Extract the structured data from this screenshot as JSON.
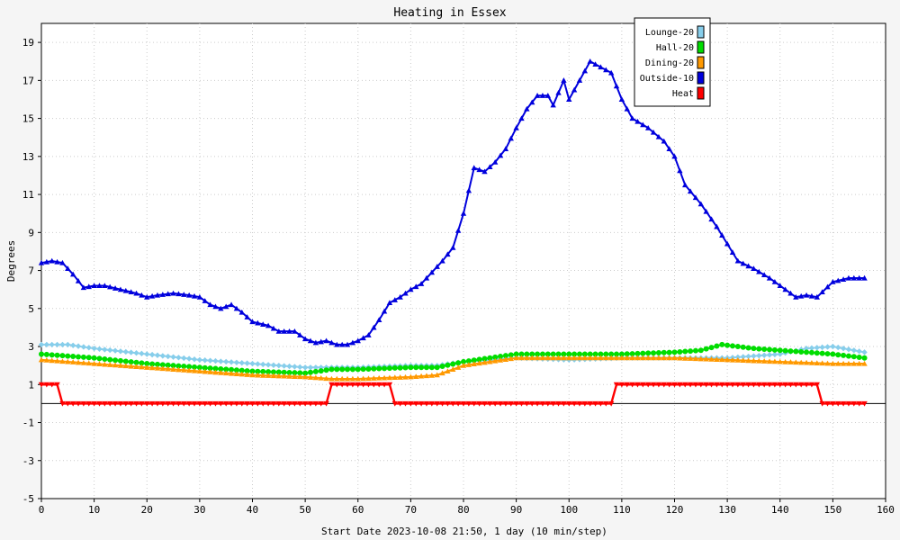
{
  "chart_data": {
    "type": "line",
    "title": "Heating in Essex",
    "xlabel": "Start Date 2023-10-08 21:50, 1 day (10 min/step)",
    "ylabel": "Degrees",
    "xlim": [
      0,
      160
    ],
    "ylim": [
      -5,
      20
    ],
    "xticks": [
      0,
      10,
      20,
      30,
      40,
      50,
      60,
      70,
      80,
      90,
      100,
      110,
      120,
      130,
      140,
      150,
      160
    ],
    "yticks": [
      -5,
      -3,
      -1,
      1,
      3,
      5,
      7,
      9,
      11,
      13,
      15,
      17,
      19
    ],
    "grid": true,
    "legend_position": "top-right",
    "x_step": 1,
    "series": [
      {
        "name": "Lounge-20",
        "color": "#87ceeb",
        "marker": "diamond",
        "keypoints": [
          [
            0,
            3.1
          ],
          [
            5,
            3.1
          ],
          [
            10,
            2.9
          ],
          [
            20,
            2.6
          ],
          [
            30,
            2.3
          ],
          [
            40,
            2.1
          ],
          [
            50,
            1.9
          ],
          [
            60,
            1.9
          ],
          [
            70,
            2.0
          ],
          [
            75,
            2.0
          ],
          [
            80,
            2.2
          ],
          [
            90,
            2.4
          ],
          [
            100,
            2.3
          ],
          [
            110,
            2.4
          ],
          [
            120,
            2.4
          ],
          [
            130,
            2.4
          ],
          [
            140,
            2.6
          ],
          [
            145,
            2.9
          ],
          [
            150,
            3.0
          ],
          [
            156,
            2.7
          ]
        ]
      },
      {
        "name": "Hall-20",
        "color": "#00dd00",
        "marker": "circle",
        "keypoints": [
          [
            0,
            2.6
          ],
          [
            10,
            2.4
          ],
          [
            20,
            2.1
          ],
          [
            30,
            1.9
          ],
          [
            40,
            1.7
          ],
          [
            50,
            1.6
          ],
          [
            55,
            1.8
          ],
          [
            60,
            1.8
          ],
          [
            70,
            1.9
          ],
          [
            75,
            1.9
          ],
          [
            80,
            2.2
          ],
          [
            85,
            2.4
          ],
          [
            90,
            2.6
          ],
          [
            100,
            2.6
          ],
          [
            110,
            2.6
          ],
          [
            120,
            2.7
          ],
          [
            125,
            2.8
          ],
          [
            129,
            3.1
          ],
          [
            135,
            2.9
          ],
          [
            140,
            2.8
          ],
          [
            150,
            2.6
          ],
          [
            156,
            2.4
          ]
        ]
      },
      {
        "name": "Dining-20",
        "color": "#ff9900",
        "marker": "triangle",
        "keypoints": [
          [
            0,
            2.3
          ],
          [
            10,
            2.1
          ],
          [
            20,
            1.9
          ],
          [
            30,
            1.7
          ],
          [
            40,
            1.5
          ],
          [
            50,
            1.4
          ],
          [
            55,
            1.3
          ],
          [
            60,
            1.3
          ],
          [
            70,
            1.4
          ],
          [
            75,
            1.5
          ],
          [
            80,
            2.0
          ],
          [
            85,
            2.2
          ],
          [
            90,
            2.4
          ],
          [
            100,
            2.4
          ],
          [
            110,
            2.4
          ],
          [
            120,
            2.4
          ],
          [
            130,
            2.3
          ],
          [
            140,
            2.2
          ],
          [
            150,
            2.1
          ],
          [
            156,
            2.1
          ]
        ]
      },
      {
        "name": "Outside-10",
        "color": "#0000dd",
        "marker": "triangle",
        "keypoints": [
          [
            0,
            7.4
          ],
          [
            2,
            7.5
          ],
          [
            4,
            7.4
          ],
          [
            6,
            6.8
          ],
          [
            8,
            6.1
          ],
          [
            10,
            6.2
          ],
          [
            12,
            6.2
          ],
          [
            15,
            6.0
          ],
          [
            18,
            5.8
          ],
          [
            20,
            5.6
          ],
          [
            22,
            5.7
          ],
          [
            25,
            5.8
          ],
          [
            28,
            5.7
          ],
          [
            30,
            5.6
          ],
          [
            32,
            5.2
          ],
          [
            34,
            5.0
          ],
          [
            36,
            5.2
          ],
          [
            38,
            4.8
          ],
          [
            40,
            4.3
          ],
          [
            43,
            4.1
          ],
          [
            45,
            3.8
          ],
          [
            48,
            3.8
          ],
          [
            50,
            3.4
          ],
          [
            52,
            3.2
          ],
          [
            54,
            3.3
          ],
          [
            56,
            3.1
          ],
          [
            58,
            3.1
          ],
          [
            60,
            3.3
          ],
          [
            62,
            3.6
          ],
          [
            64,
            4.4
          ],
          [
            66,
            5.3
          ],
          [
            68,
            5.6
          ],
          [
            70,
            6.0
          ],
          [
            72,
            6.3
          ],
          [
            74,
            6.9
          ],
          [
            76,
            7.5
          ],
          [
            78,
            8.2
          ],
          [
            80,
            10.0
          ],
          [
            82,
            12.4
          ],
          [
            84,
            12.2
          ],
          [
            86,
            12.7
          ],
          [
            88,
            13.4
          ],
          [
            90,
            14.5
          ],
          [
            92,
            15.5
          ],
          [
            94,
            16.2
          ],
          [
            96,
            16.2
          ],
          [
            97,
            15.7
          ],
          [
            99,
            17.0
          ],
          [
            100,
            16.0
          ],
          [
            102,
            17.0
          ],
          [
            104,
            18.0
          ],
          [
            106,
            17.7
          ],
          [
            108,
            17.4
          ],
          [
            110,
            16.0
          ],
          [
            112,
            15.0
          ],
          [
            115,
            14.5
          ],
          [
            118,
            13.8
          ],
          [
            120,
            13.0
          ],
          [
            122,
            11.5
          ],
          [
            125,
            10.5
          ],
          [
            128,
            9.3
          ],
          [
            130,
            8.4
          ],
          [
            132,
            7.5
          ],
          [
            135,
            7.1
          ],
          [
            138,
            6.6
          ],
          [
            140,
            6.2
          ],
          [
            143,
            5.6
          ],
          [
            145,
            5.7
          ],
          [
            147,
            5.6
          ],
          [
            150,
            6.4
          ],
          [
            153,
            6.6
          ],
          [
            156,
            6.6
          ]
        ]
      },
      {
        "name": "Heat",
        "color": "#ff0000",
        "marker": "triangle-down",
        "keypoints": [
          [
            0,
            1
          ],
          [
            3,
            1
          ],
          [
            4,
            0
          ],
          [
            54,
            0
          ],
          [
            55,
            1
          ],
          [
            66,
            1
          ],
          [
            67,
            0
          ],
          [
            108,
            0
          ],
          [
            109,
            1
          ],
          [
            147,
            1
          ],
          [
            148,
            0
          ],
          [
            156,
            0
          ]
        ]
      }
    ]
  }
}
